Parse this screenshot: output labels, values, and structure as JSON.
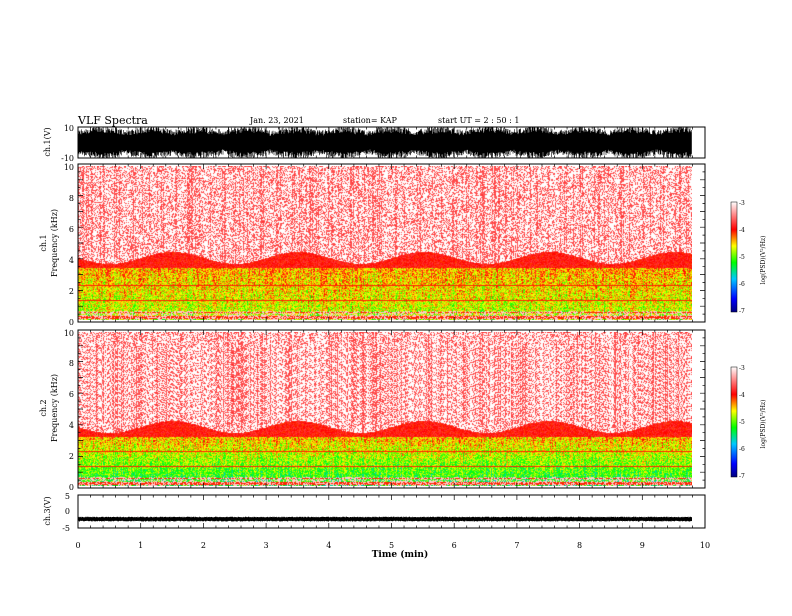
{
  "header": {
    "title": "VLF Spectra",
    "date": "Jan. 23, 2021",
    "station": "station= KAP",
    "start": "start  UT =   2 : 50 : 1"
  },
  "chart_data": [
    {
      "id": "ch1-waveform",
      "type": "line",
      "ylabel": "ch.1(V)",
      "ylim": [
        -10,
        10
      ],
      "yticks": [
        "10",
        "-10"
      ],
      "xlim": [
        0,
        10
      ],
      "description_values": {
        "envelope_max": 10,
        "envelope_min": -10
      }
    },
    {
      "id": "ch1-spectrogram",
      "type": "heatmap",
      "ylabel": "ch.1\nFrequency  (kHz)",
      "ylabel_lines": [
        "ch.1",
        "Frequency  (kHz)"
      ],
      "ylim": [
        0,
        10
      ],
      "yticks": [
        "0",
        "2",
        "4",
        "6",
        "8",
        "10"
      ],
      "xlim": [
        0,
        10
      ],
      "activity_top_khz": 3.8,
      "colorbar": {
        "label": "log(PSD)(V²/Hz)",
        "range": [
          -7,
          -3
        ],
        "ticks": [
          "-3",
          "-4",
          "-5",
          "-6",
          "-7"
        ]
      }
    },
    {
      "id": "ch2-spectrogram",
      "type": "heatmap",
      "ylabel_lines": [
        "ch.2",
        "Frequency  (kHz)"
      ],
      "ylim": [
        0,
        10
      ],
      "yticks": [
        "0",
        "2",
        "4",
        "6",
        "8",
        "10"
      ],
      "xlim": [
        0,
        10
      ],
      "activity_top_khz": 3.6,
      "colorbar": {
        "label": "log(PSD)(V²/Hz)",
        "range": [
          -7,
          -3
        ],
        "ticks": [
          "-3",
          "-4",
          "-5",
          "-6",
          "-7"
        ]
      }
    },
    {
      "id": "ch3-waveform",
      "type": "line",
      "ylabel": "ch.3(V)",
      "ylim": [
        -5,
        5
      ],
      "yticks": [
        "5",
        "0",
        "-5"
      ],
      "xlim": [
        0,
        10
      ],
      "xlabel": "Time  (min)",
      "xticks": [
        "0",
        "1",
        "2",
        "3",
        "4",
        "5",
        "6",
        "7",
        "8",
        "9",
        "10"
      ],
      "band_center": -2.3
    }
  ],
  "colors": {
    "low": "#00007f",
    "mid_blue": "#0000ff",
    "green": "#00ff00",
    "yellow": "#ffff00",
    "red": "#ff0000",
    "high": "#ffffff"
  }
}
